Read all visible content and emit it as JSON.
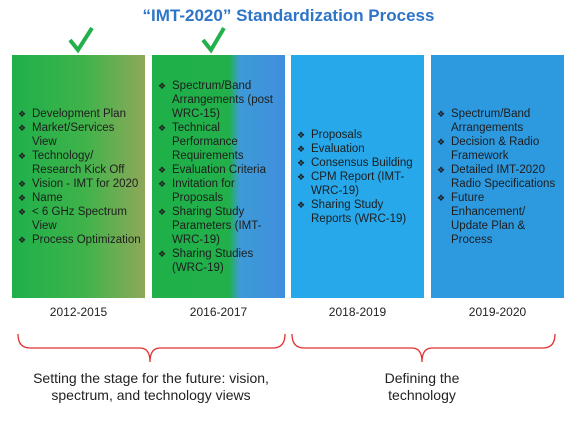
{
  "title": "“IMT-2020” Standardization Process",
  "columns": [
    {
      "items": [
        "Development Plan",
        "Market/Services View",
        "Technology/ Research Kick Off",
        "Vision - IMT for 2020",
        "Name",
        "< 6 GHz Spectrum View",
        "Process Optimization"
      ],
      "period": "2012-2015"
    },
    {
      "items": [
        "Spectrum/Band Arrangements (post WRC-15)",
        "Technical Performance Requirements",
        "Evaluation Criteria",
        "Invitation for Proposals",
        "Sharing Study Parameters (IMT-WRC-19)",
        "Sharing Studies (WRC-19)"
      ],
      "period": "2016-2017"
    },
    {
      "items": [
        "Proposals",
        "Evaluation",
        "Consensus Building",
        "CPM Report (IMT-WRC-19)",
        "Sharing Study Reports (WRC-19)"
      ],
      "period": "2018-2019"
    },
    {
      "items": [
        "Spectrum/Band Arrangements",
        "Decision & Radio Framework",
        "Detailed IMT-2020 Radio Specifications",
        "Future Enhancement/ Update Plan & Process"
      ],
      "period": "2019-2020"
    }
  ],
  "groups": [
    {
      "label": "Setting the stage for the future: vision, spectrum, and technology views"
    },
    {
      "label": "Defining the technology"
    }
  ]
}
